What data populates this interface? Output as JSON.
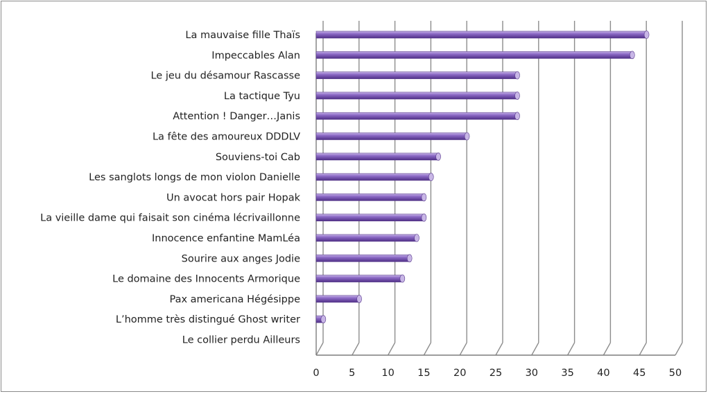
{
  "chart_data": {
    "type": "bar",
    "orientation": "horizontal",
    "categories": [
      "La mauvaise fille Thaïs",
      "Impeccables Alan",
      "Le jeu du désamour Rascasse",
      "La tactique Tyu",
      "Attention ! Danger…Janis",
      "La fête des amoureux  DDDLV",
      "Souviens-toi Cab",
      "Les sanglots longs de mon violon Danielle",
      "Un avocat hors pair Hopak",
      "La vieille dame qui faisait son cinéma lécrivaillonne",
      "Innocence enfantine MamLéa",
      "Sourire aux anges  Jodie",
      "Le domaine des Innocents Armorique",
      "Pax americana Hégésippe",
      "L’homme très distingué Ghost writer",
      "Le collier perdu Ailleurs"
    ],
    "values": [
      46,
      44,
      28,
      28,
      28,
      21,
      17,
      16,
      15,
      15,
      14,
      13,
      12,
      6,
      1,
      0
    ],
    "x_ticks": [
      "0",
      "5",
      "10",
      "15",
      "20",
      "25",
      "30",
      "35",
      "40",
      "45",
      "50"
    ],
    "xlim": [
      0,
      50
    ],
    "grid": "vertical",
    "legend": "none",
    "colors": {
      "bar_top": "#b9a3dd",
      "bar_mid": "#8a66c2",
      "bar_bottom": "#55348c",
      "bar_end": "#c8b6e6",
      "grid": "#8c8c8c",
      "axis": "#7d7d7d"
    }
  }
}
